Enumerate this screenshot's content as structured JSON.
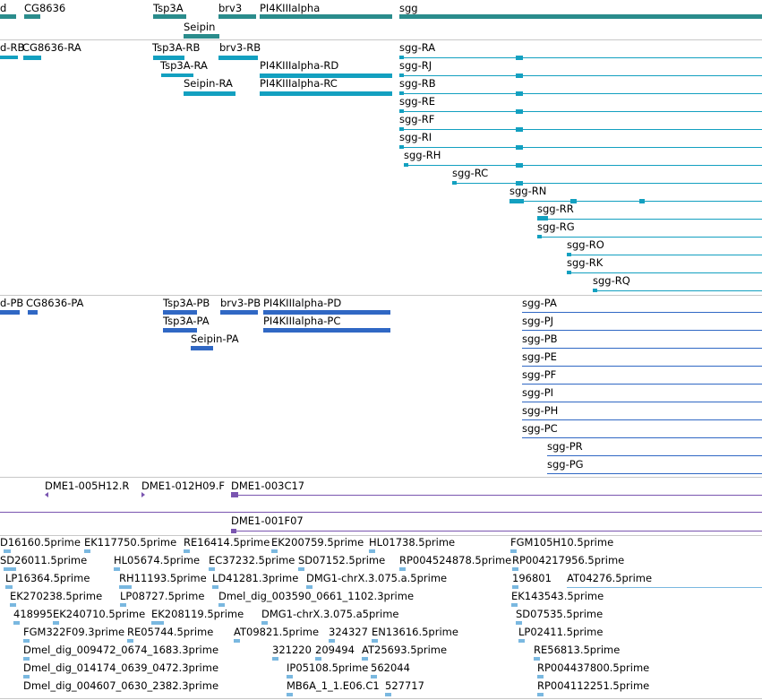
{
  "colors": {
    "gene": "#2a8c8c",
    "transcript": "#13a0c0",
    "protein": "#3068c4",
    "clone": "#7a55b0",
    "est": "#7ab8e0",
    "separator": "#c8c8c8"
  },
  "genes": [
    {
      "label": "d"
    },
    {
      "label": "CG8636"
    },
    {
      "label": "Tsp3A"
    },
    {
      "label": "brv3"
    },
    {
      "label": "PI4KIIIalpha"
    },
    {
      "label": "sgg"
    },
    {
      "label": "Seipin"
    }
  ],
  "transcripts": [
    {
      "label": "d-RB"
    },
    {
      "label": "CG8636-RA"
    },
    {
      "label": "Tsp3A-RB"
    },
    {
      "label": "brv3-RB"
    },
    {
      "label": "Tsp3A-RA"
    },
    {
      "label": "PI4KIIIalpha-RD"
    },
    {
      "label": "Seipin-RA"
    },
    {
      "label": "PI4KIIIalpha-RC"
    },
    {
      "label": "sgg-RA"
    },
    {
      "label": "sgg-RJ"
    },
    {
      "label": "sgg-RB"
    },
    {
      "label": "sgg-RE"
    },
    {
      "label": "sgg-RF"
    },
    {
      "label": "sgg-RI"
    },
    {
      "label": "sgg-RH"
    },
    {
      "label": "sgg-RC"
    },
    {
      "label": "sgg-RN"
    },
    {
      "label": "sgg-RR"
    },
    {
      "label": "sgg-RG"
    },
    {
      "label": "sgg-RO"
    },
    {
      "label": "sgg-RK"
    },
    {
      "label": "sgg-RQ"
    }
  ],
  "proteins": [
    {
      "label": "d-PB"
    },
    {
      "label": "CG8636-PA"
    },
    {
      "label": "Tsp3A-PB"
    },
    {
      "label": "brv3-PB"
    },
    {
      "label": "PI4KIIIalpha-PD"
    },
    {
      "label": "Tsp3A-PA"
    },
    {
      "label": "PI4KIIIalpha-PC"
    },
    {
      "label": "Seipin-PA"
    },
    {
      "label": "sgg-PA"
    },
    {
      "label": "sgg-PJ"
    },
    {
      "label": "sgg-PB"
    },
    {
      "label": "sgg-PE"
    },
    {
      "label": "sgg-PF"
    },
    {
      "label": "sgg-PI"
    },
    {
      "label": "sgg-PH"
    },
    {
      "label": "sgg-PC"
    },
    {
      "label": "sgg-PR"
    },
    {
      "label": "sgg-PG"
    }
  ],
  "clones": [
    {
      "label": "DME1-005H12.R"
    },
    {
      "label": "DME1-012H09.F"
    },
    {
      "label": "DME1-003C17"
    },
    {
      "label": "DME1-001F07"
    }
  ],
  "ests": [
    {
      "label": "D16160.5prime"
    },
    {
      "label": "EK117750.5prime"
    },
    {
      "label": "RE16414.5prime"
    },
    {
      "label": "EK200759.5prime"
    },
    {
      "label": "HL01738.5prime"
    },
    {
      "label": "FGM105H10.5prime"
    },
    {
      "label": "SD26011.5prime"
    },
    {
      "label": "HL05674.5prime"
    },
    {
      "label": "EC37232.5prime"
    },
    {
      "label": "SD07152.5prime"
    },
    {
      "label": "RP004524878.5prime"
    },
    {
      "label": "RP004217956.5prime"
    },
    {
      "label": "LP16364.5prime"
    },
    {
      "label": "RH11193.5prime"
    },
    {
      "label": "LD41281.3prime"
    },
    {
      "label": "DMG1-chrX.3.075.a.5prime"
    },
    {
      "label": "196801"
    },
    {
      "label": "AT04276.5prime"
    },
    {
      "label": "EK270238.5prime"
    },
    {
      "label": "LP08727.5prime"
    },
    {
      "label": "Dmel_dig_003590_0661_1102.3prime"
    },
    {
      "label": "EK143543.5prime"
    },
    {
      "label": "418995"
    },
    {
      "label": "EK240710.5prime"
    },
    {
      "label": "EK208119.5prime"
    },
    {
      "label": "DMG1-chrX.3.075.a5prime"
    },
    {
      "label": "SD07535.5prime"
    },
    {
      "label": "FGM322F09.3prime"
    },
    {
      "label": "RE05744.5prime"
    },
    {
      "label": "AT09821.5prime"
    },
    {
      "label": "324327"
    },
    {
      "label": "EN13616.5prime"
    },
    {
      "label": "LP02411.5prime"
    },
    {
      "label": "Dmel_dig_009472_0674_1683.3prime"
    },
    {
      "label": "321220"
    },
    {
      "label": "209494"
    },
    {
      "label": "AT25693.5prime"
    },
    {
      "label": "RE56813.5prime"
    },
    {
      "label": "Dmel_dig_014174_0639_0472.3prime"
    },
    {
      "label": "IP05108.5prime"
    },
    {
      "label": "562044"
    },
    {
      "label": "RP004437800.5prime"
    },
    {
      "label": "Dmel_dig_004607_0630_2382.3prime"
    },
    {
      "label": "MB6A_1_1.E06.C1"
    },
    {
      "label": "527717"
    },
    {
      "label": "RP004112251.5prime"
    }
  ]
}
